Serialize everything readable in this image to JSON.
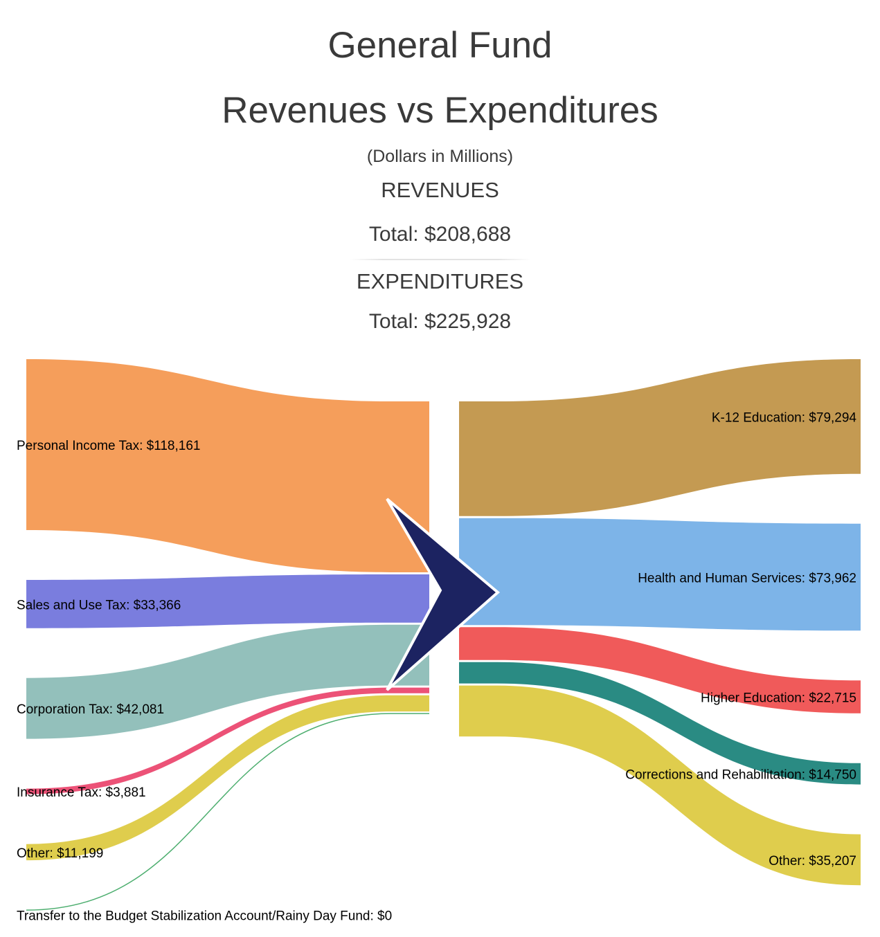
{
  "header": {
    "title_line1": "General Fund",
    "title_line2": "Revenues vs Expenditures",
    "subtitle": "(Dollars in Millions)",
    "revenues_heading": "REVENUES",
    "revenues_total_label": "Total: $208,688",
    "expenditures_heading": "EXPENDITURES",
    "expenditures_total_label": "Total: $225,928"
  },
  "chart_data": {
    "type": "sankey",
    "unit": "Dollars in Millions",
    "revenues_total": 208688,
    "expenditures_total": 225928,
    "arrow_color": "#1c2361",
    "revenues": [
      {
        "label": "Personal Income Tax",
        "display": "Personal Income Tax: $118,161",
        "value": 118161,
        "color": "#f59e5b"
      },
      {
        "label": "Sales and Use Tax",
        "display": "Sales and Use Tax: $33,366",
        "value": 33366,
        "color": "#7a7dde"
      },
      {
        "label": "Corporation Tax",
        "display": "Corporation Tax: $42,081",
        "value": 42081,
        "color": "#93c0bb"
      },
      {
        "label": "Insurance Tax",
        "display": "Insurance Tax: $3,881",
        "value": 3881,
        "color": "#ec5277"
      },
      {
        "label": "Other",
        "display": "Other: $11,199",
        "value": 11199,
        "color": "#dfcd4d"
      },
      {
        "label": "Transfer to the Budget Stabilization Account/Rainy Day Fund",
        "display": "Transfer to the Budget Stabilization Account/Rainy Day Fund: $0",
        "value": 0,
        "color": "#4dae6f"
      }
    ],
    "expenditures": [
      {
        "label": "K-12 Education",
        "display": "K-12 Education: $79,294",
        "value": 79294,
        "color": "#c49a52"
      },
      {
        "label": "Health and Human Services",
        "display": "Health and Human Services: $73,962",
        "value": 73962,
        "color": "#7db4e8"
      },
      {
        "label": "Higher Education",
        "display": "Higher Education: $22,715",
        "value": 22715,
        "color": "#f05a5a"
      },
      {
        "label": "Corrections and Rehabilitation",
        "display": "Corrections and Rehabilitation: $14,750",
        "value": 14750,
        "color": "#2a8b83"
      },
      {
        "label": "Other",
        "display": "Other: $35,207",
        "value": 35207,
        "color": "#dfcd4d"
      }
    ]
  }
}
